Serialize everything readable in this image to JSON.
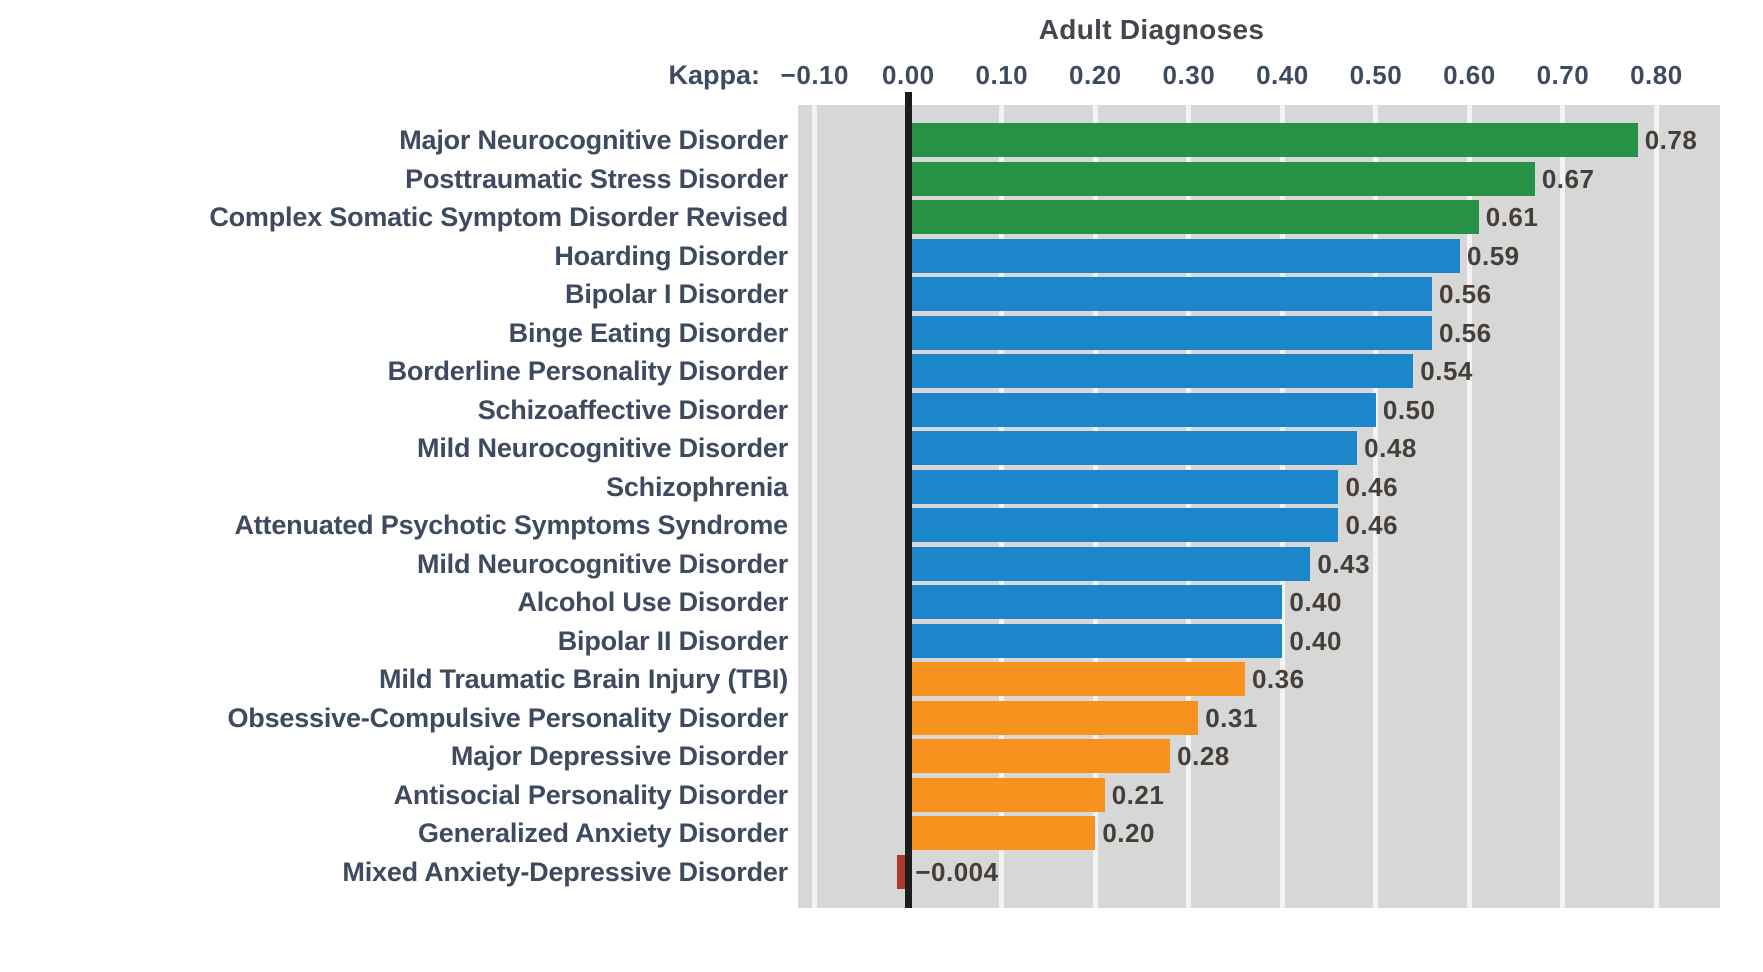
{
  "chart_data": {
    "type": "bar",
    "orientation": "horizontal",
    "title": "Adult Diagnoses",
    "xlabel": "Kappa:",
    "ylabel": "",
    "xlim": [
      -0.118,
      0.868
    ],
    "grid": "white vertical gridlines on gray panel, every 0.10",
    "legend_position": "none",
    "xticks": [
      {
        "value": -0.1,
        "label": "−0.10"
      },
      {
        "value": 0.0,
        "label": "0.00"
      },
      {
        "value": 0.1,
        "label": "0.10"
      },
      {
        "value": 0.2,
        "label": "0.20"
      },
      {
        "value": 0.3,
        "label": "0.30"
      },
      {
        "value": 0.4,
        "label": "0.40"
      },
      {
        "value": 0.5,
        "label": "0.50"
      },
      {
        "value": 0.6,
        "label": "0.60"
      },
      {
        "value": 0.7,
        "label": "0.70"
      },
      {
        "value": 0.8,
        "label": "0.80"
      }
    ],
    "items": [
      {
        "label": "Major Neurocognitive Disorder",
        "value": 0.78,
        "display": "0.78",
        "group": "green"
      },
      {
        "label": "Posttraumatic Stress Disorder",
        "value": 0.67,
        "display": "0.67",
        "group": "green"
      },
      {
        "label": "Complex Somatic Symptom Disorder Revised",
        "value": 0.61,
        "display": "0.61",
        "group": "green"
      },
      {
        "label": "Hoarding Disorder",
        "value": 0.59,
        "display": "0.59",
        "group": "blue"
      },
      {
        "label": "Bipolar I Disorder",
        "value": 0.56,
        "display": "0.56",
        "group": "blue"
      },
      {
        "label": "Binge Eating Disorder",
        "value": 0.56,
        "display": "0.56",
        "group": "blue"
      },
      {
        "label": "Borderline Personality Disorder",
        "value": 0.54,
        "display": "0.54",
        "group": "blue"
      },
      {
        "label": "Schizoaffective Disorder",
        "value": 0.5,
        "display": "0.50",
        "group": "blue"
      },
      {
        "label": "Mild Neurocognitive Disorder",
        "value": 0.48,
        "display": "0.48",
        "group": "blue"
      },
      {
        "label": "Schizophrenia",
        "value": 0.46,
        "display": "0.46",
        "group": "blue"
      },
      {
        "label": "Attenuated Psychotic Symptoms Syndrome",
        "value": 0.46,
        "display": "0.46",
        "group": "blue"
      },
      {
        "label": "Mild Neurocognitive Disorder",
        "value": 0.43,
        "display": "0.43",
        "group": "blue"
      },
      {
        "label": "Alcohol Use Disorder",
        "value": 0.4,
        "display": "0.40",
        "group": "blue"
      },
      {
        "label": "Bipolar II Disorder",
        "value": 0.4,
        "display": "0.40",
        "group": "blue"
      },
      {
        "label": "Mild Traumatic Brain Injury (TBI)",
        "value": 0.36,
        "display": "0.36",
        "group": "orange"
      },
      {
        "label": "Obsessive-Compulsive Personality Disorder",
        "value": 0.31,
        "display": "0.31",
        "group": "orange"
      },
      {
        "label": "Major Depressive Disorder",
        "value": 0.28,
        "display": "0.28",
        "group": "orange"
      },
      {
        "label": "Antisocial Personality Disorder",
        "value": 0.21,
        "display": "0.21",
        "group": "orange"
      },
      {
        "label": "Generalized Anxiety Disorder",
        "value": 0.2,
        "display": "0.20",
        "group": "orange"
      },
      {
        "label": "Mixed Anxiety-Depressive Disorder",
        "value": -0.004,
        "display": "−0.004",
        "group": "red"
      }
    ],
    "palette": {
      "green": "#279245",
      "blue": "#1b86c9",
      "orange": "#f6921d",
      "red": "#b0392f"
    },
    "panel_background": "#d7d7d8",
    "gridline_color": "#f3f3f3",
    "zero_line_color": "#1c1c1c"
  }
}
